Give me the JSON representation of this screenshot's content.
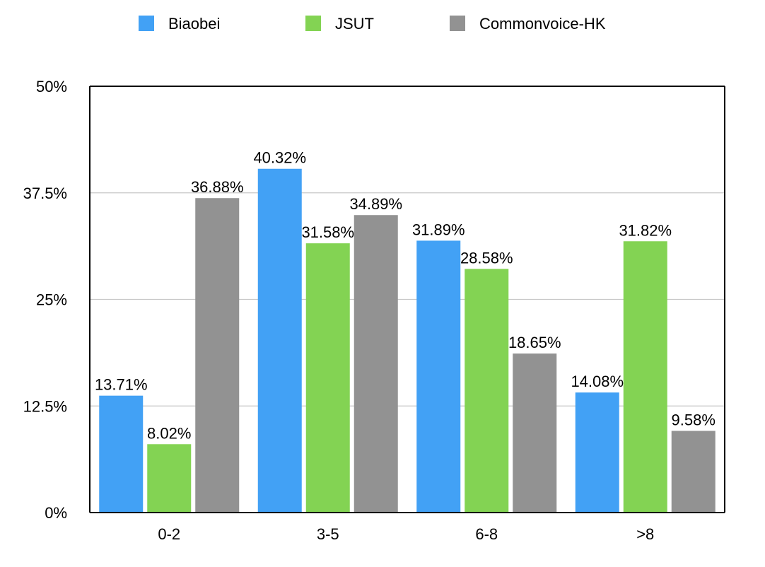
{
  "chart_data": {
    "type": "bar",
    "title": "",
    "xlabel": "",
    "ylabel": "",
    "categories": [
      "0-2",
      "3-5",
      "6-8",
      ">8"
    ],
    "series": [
      {
        "name": "Biaobei",
        "color": "#42a1f5",
        "values": [
          13.71,
          40.32,
          31.89,
          14.08
        ],
        "labels": [
          "13.71%",
          "40.32%",
          "31.89%",
          "14.08%"
        ]
      },
      {
        "name": "JSUT",
        "color": "#83d353",
        "values": [
          8.02,
          31.58,
          28.58,
          31.82
        ],
        "labels": [
          "8.02%",
          "31.58%",
          "28.58%",
          "31.82%"
        ]
      },
      {
        "name": "Commonvoice-HK",
        "color": "#929292",
        "values": [
          36.88,
          34.89,
          18.65,
          9.58
        ],
        "labels": [
          "36.88%",
          "34.89%",
          "18.65%",
          "9.58%"
        ]
      }
    ],
    "ylim": [
      0,
      50
    ],
    "yticks": [
      0,
      12.5,
      25,
      37.5,
      50
    ],
    "ytick_labels": [
      "0%",
      "12.5%",
      "25%",
      "37.5%",
      "50%"
    ],
    "grid": true,
    "legend": "top-center"
  }
}
